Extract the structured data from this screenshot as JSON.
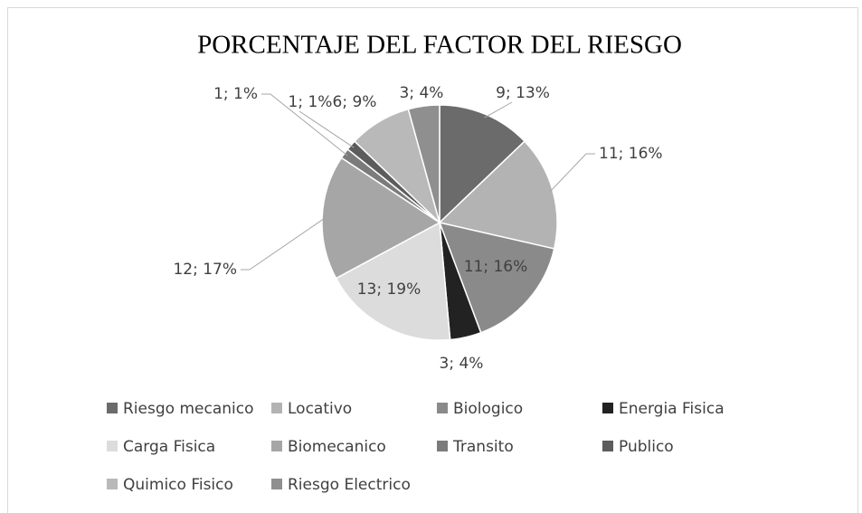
{
  "chart_data": {
    "type": "pie",
    "title": "PORCENTAJE DEL FACTOR DEL RIESGO",
    "categories": [
      "Riesgo mecanico",
      "Locativo",
      "Biologico",
      "Energia Fisica",
      "Carga Fisica",
      "Biomecanico",
      "Transito",
      "Publico",
      "Quimico Fisico",
      "Riesgo Electrico"
    ],
    "values": [
      9,
      11,
      11,
      3,
      13,
      12,
      1,
      1,
      6,
      3
    ],
    "value_labels": [
      "9; 13%",
      "11; 16%",
      "11; 16%",
      "3; 4%",
      "13; 19%",
      "12; 17%",
      "1; 1%",
      "1; 1%",
      "6; 9%",
      "3; 4%"
    ],
    "colors": [
      "#6b6b6b",
      "#b3b3b3",
      "#8a8a8a",
      "#222222",
      "#dcdcdc",
      "#a6a6a6",
      "#7b7b7b",
      "#5c5c5c",
      "#b9b9b9",
      "#8f8f8f"
    ],
    "legend": "bottom"
  }
}
